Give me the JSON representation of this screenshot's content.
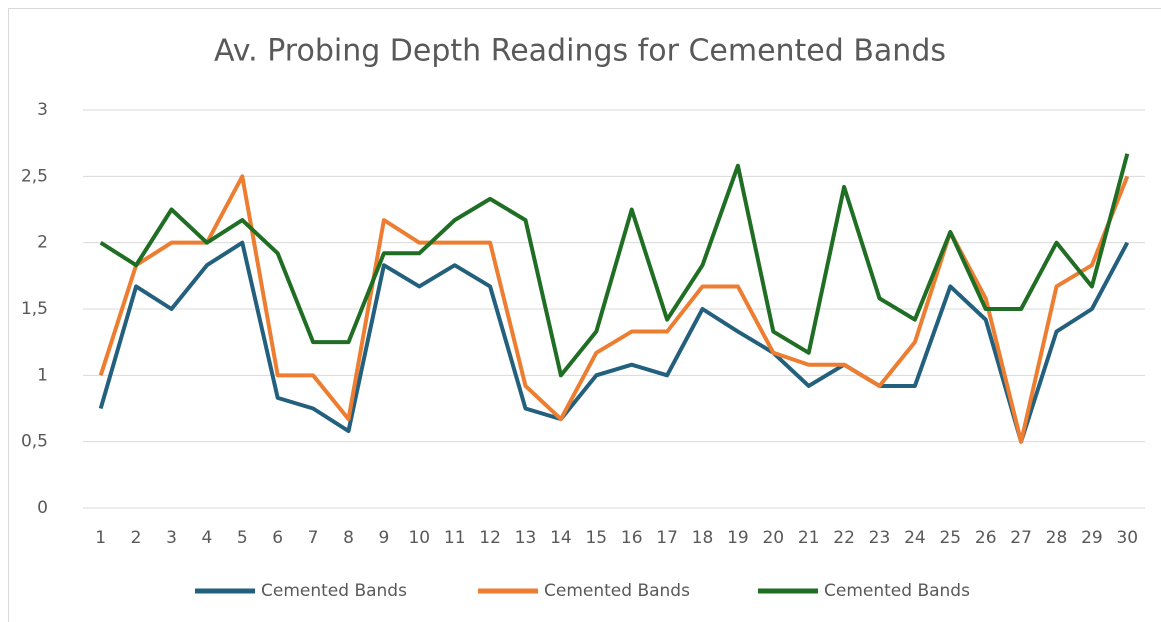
{
  "chart_data": {
    "type": "line",
    "title": "Av. Probing Depth Readings for Cemented Bands",
    "categories": [
      "1",
      "2",
      "3",
      "4",
      "5",
      "6",
      "7",
      "8",
      "9",
      "10",
      "11",
      "12",
      "13",
      "14",
      "15",
      "16",
      "17",
      "18",
      "19",
      "20",
      "21",
      "22",
      "23",
      "24",
      "25",
      "26",
      "27",
      "28",
      "29",
      "30"
    ],
    "series": [
      {
        "name": "Cemented Bands",
        "color": "#23607e",
        "values": [
          0.75,
          1.67,
          1.5,
          1.83,
          2,
          0.83,
          0.75,
          0.58,
          1.83,
          1.67,
          1.83,
          1.67,
          0.75,
          0.67,
          1,
          1.08,
          1,
          1.5,
          1.33,
          1.17,
          0.92,
          1.08,
          0.92,
          0.92,
          1.67,
          1.42,
          0.5,
          1.33,
          1.5,
          2
        ]
      },
      {
        "name": "Cemented Bands",
        "color": "#ed7d31",
        "values": [
          1,
          1.83,
          2,
          2,
          2.5,
          1,
          1,
          0.67,
          2.17,
          2,
          2,
          2,
          0.92,
          0.67,
          1.17,
          1.33,
          1.33,
          1.67,
          1.67,
          1.17,
          1.08,
          1.08,
          0.92,
          1.25,
          2.08,
          1.58,
          0.5,
          1.67,
          1.83,
          2.5
        ]
      },
      {
        "name": "Cemented Bands",
        "color": "#1f6e23",
        "values": [
          2,
          1.83,
          2.25,
          2,
          2.17,
          1.92,
          1.25,
          1.25,
          1.92,
          1.92,
          2.17,
          2.33,
          2.17,
          1,
          1.33,
          2.25,
          1.42,
          1.83,
          2.58,
          1.33,
          1.17,
          2.42,
          1.58,
          1.42,
          2.08,
          1.5,
          1.5,
          2,
          1.67,
          2.67
        ]
      }
    ],
    "ylim": [
      0,
      3
    ],
    "yticks": [
      0,
      {
        "value": 0.5,
        "label": "0,5"
      },
      1,
      {
        "value": 1.5,
        "label": "1,5"
      },
      2,
      {
        "value": 2.5,
        "label": "2,5"
      },
      3
    ],
    "grid": true,
    "legend": "bottom"
  }
}
